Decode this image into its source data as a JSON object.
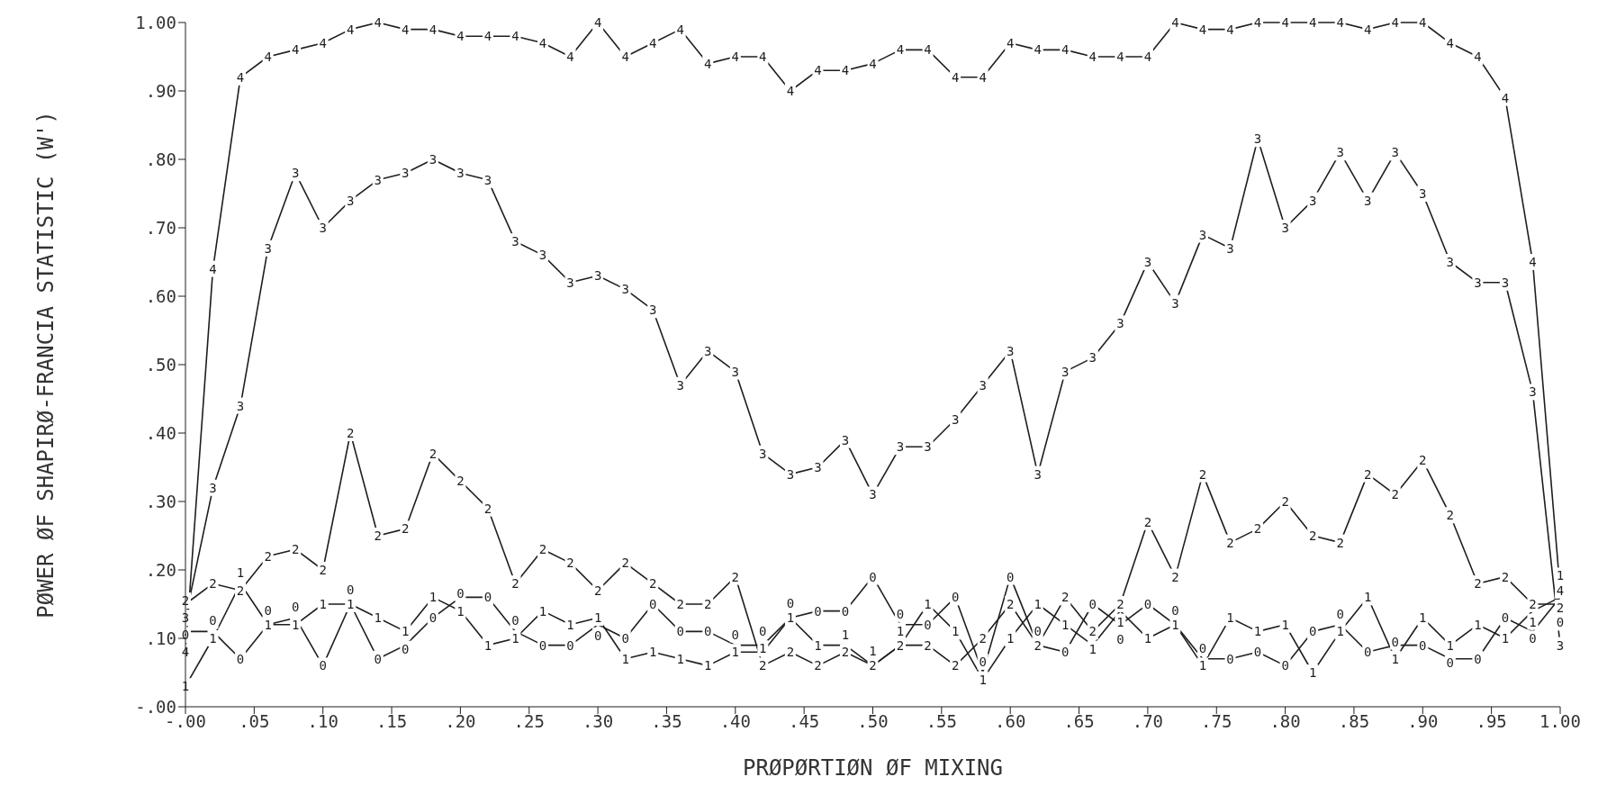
{
  "chart_data": {
    "type": "line",
    "xlabel": "PRØPØRTIØN ØF MIXING",
    "ylabel": "PØWER ØF SHAPIRØ-FRANCIA STATISTIC (W')",
    "x": [
      0,
      0.02,
      0.04,
      0.06,
      0.08,
      0.1,
      0.12,
      0.14,
      0.16,
      0.18,
      0.2,
      0.22,
      0.24,
      0.26,
      0.28,
      0.3,
      0.32,
      0.34,
      0.36,
      0.38,
      0.4,
      0.42,
      0.44,
      0.46,
      0.48,
      0.5,
      0.52,
      0.54,
      0.56,
      0.58,
      0.6,
      0.62,
      0.64,
      0.66,
      0.68,
      0.7,
      0.72,
      0.74,
      0.76,
      0.78,
      0.8,
      0.82,
      0.84,
      0.86,
      0.88,
      0.9,
      0.92,
      0.94,
      0.96,
      0.98,
      1
    ],
    "series": [
      {
        "name": "4",
        "color": "#1e1e1e",
        "values": [
          0.08,
          0.64,
          0.92,
          0.95,
          0.96,
          0.97,
          0.99,
          1.0,
          0.99,
          0.99,
          0.98,
          0.98,
          0.98,
          0.97,
          0.95,
          1.0,
          0.95,
          0.97,
          0.99,
          0.94,
          0.95,
          0.95,
          0.9,
          0.93,
          0.93,
          0.94,
          0.96,
          0.96,
          0.92,
          0.92,
          0.97,
          0.96,
          0.96,
          0.95,
          0.95,
          0.95,
          1.0,
          0.99,
          0.99,
          1.0,
          1.0,
          1.0,
          1.0,
          0.99,
          1.0,
          1.0,
          0.97,
          0.95,
          0.89,
          0.65,
          0.17
        ]
      },
      {
        "name": "3",
        "color": "#1e1e1e",
        "values": [
          0.13,
          0.32,
          0.44,
          0.67,
          0.78,
          0.7,
          0.74,
          0.77,
          0.78,
          0.8,
          0.78,
          0.77,
          0.68,
          0.66,
          0.62,
          0.63,
          0.61,
          0.58,
          0.47,
          0.52,
          0.49,
          0.37,
          0.34,
          0.35,
          0.39,
          0.31,
          0.38,
          0.38,
          0.42,
          0.47,
          0.52,
          0.34,
          0.49,
          0.51,
          0.56,
          0.65,
          0.59,
          0.69,
          0.67,
          0.83,
          0.7,
          0.74,
          0.81,
          0.74,
          0.81,
          0.75,
          0.65,
          0.62,
          0.62,
          0.46,
          0.09
        ]
      },
      {
        "name": "2",
        "color": "#1e1e1e",
        "values": [
          0.15,
          0.18,
          0.17,
          0.22,
          0.23,
          0.2,
          0.4,
          0.25,
          0.26,
          0.37,
          0.33,
          0.29,
          0.18,
          0.23,
          0.21,
          0.17,
          0.21,
          0.18,
          0.15,
          0.15,
          0.19,
          0.06,
          0.08,
          0.06,
          0.08,
          0.06,
          0.09,
          0.09,
          0.06,
          0.1,
          0.15,
          0.09,
          0.16,
          0.11,
          0.15,
          0.27,
          0.19,
          0.34,
          0.24,
          0.26,
          0.3,
          0.25,
          0.24,
          0.34,
          0.31,
          0.36,
          0.28,
          0.18,
          0.19,
          0.15,
          0.15
        ]
      },
      {
        "name": "1",
        "color": "#1e1e1e",
        "values": [
          0.03,
          0.1,
          0.18,
          0.12,
          0.12,
          0.15,
          0.15,
          0.13,
          0.11,
          0.16,
          0.14,
          0.09,
          0.1,
          0.14,
          0.12,
          0.13,
          0.07,
          0.08,
          0.07,
          0.06,
          0.08,
          0.08,
          0.13,
          0.09,
          0.09,
          0.06,
          0.09,
          0.15,
          0.11,
          0.04,
          0.1,
          0.15,
          0.12,
          0.09,
          0.14,
          0.1,
          0.12,
          0.06,
          0.13,
          0.11,
          0.12,
          0.05,
          0.11,
          0.16,
          0.07,
          0.13,
          0.09,
          0.12,
          0.1,
          0.14,
          0.16
        ]
      },
      {
        "name": "0",
        "color": "#1e1e1e",
        "values": [
          0.11,
          0.11,
          0.07,
          0.12,
          0.13,
          0.06,
          0.15,
          0.07,
          0.09,
          0.13,
          0.16,
          0.16,
          0.11,
          0.09,
          0.09,
          0.12,
          0.1,
          0.15,
          0.11,
          0.11,
          0.09,
          0.09,
          0.13,
          0.14,
          0.14,
          0.19,
          0.12,
          0.12,
          0.16,
          0.05,
          0.19,
          0.09,
          0.08,
          0.15,
          0.12,
          0.15,
          0.12,
          0.07,
          0.07,
          0.08,
          0.06,
          0.11,
          0.12,
          0.08,
          0.09,
          0.09,
          0.07,
          0.07,
          0.13,
          0.11,
          0.16
        ]
      }
    ],
    "xlim": [
      0,
      1
    ],
    "xticks": [
      {
        "value": 0,
        "label": "-.00"
      },
      {
        "value": 0.05,
        "label": ".05"
      },
      {
        "value": 0.1,
        "label": ".10"
      },
      {
        "value": 0.15,
        "label": ".15"
      },
      {
        "value": 0.2,
        "label": ".20"
      },
      {
        "value": 0.25,
        "label": ".25"
      },
      {
        "value": 0.3,
        "label": ".30"
      },
      {
        "value": 0.35,
        "label": ".35"
      },
      {
        "value": 0.4,
        "label": ".40"
      },
      {
        "value": 0.45,
        "label": ".45"
      },
      {
        "value": 0.5,
        "label": ".50"
      },
      {
        "value": 0.55,
        "label": ".55"
      },
      {
        "value": 0.6,
        "label": ".60"
      },
      {
        "value": 0.65,
        "label": ".65"
      },
      {
        "value": 0.7,
        "label": ".70"
      },
      {
        "value": 0.75,
        "label": ".75"
      },
      {
        "value": 0.8,
        "label": ".80"
      },
      {
        "value": 0.85,
        "label": ".85"
      },
      {
        "value": 0.9,
        "label": ".90"
      },
      {
        "value": 0.95,
        "label": ".95"
      },
      {
        "value": 1,
        "label": "1.00"
      }
    ],
    "ylim": [
      0,
      1
    ],
    "yticks": [
      {
        "value": 0,
        "label": "-.00"
      },
      {
        "value": 0.1,
        "label": ".10"
      },
      {
        "value": 0.2,
        "label": ".20"
      },
      {
        "value": 0.3,
        "label": ".30"
      },
      {
        "value": 0.4,
        "label": ".40"
      },
      {
        "value": 0.5,
        "label": ".50"
      },
      {
        "value": 0.6,
        "label": ".60"
      },
      {
        "value": 0.7,
        "label": ".70"
      },
      {
        "value": 0.8,
        "label": ".80"
      },
      {
        "value": 0.9,
        "label": ".90"
      },
      {
        "value": 1,
        "label": "1.00"
      }
    ],
    "marker": "none",
    "grid": false,
    "legend": false
  }
}
